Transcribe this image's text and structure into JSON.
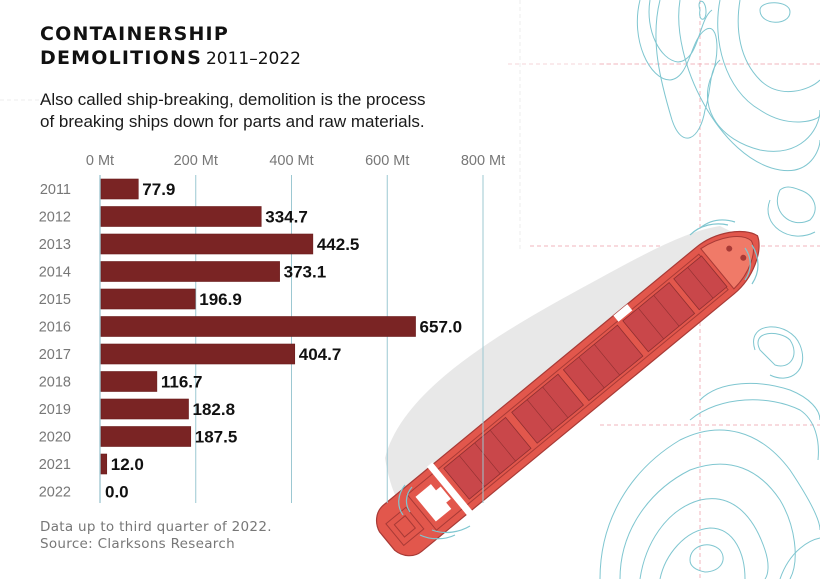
{
  "header": {
    "title_line1": "CONTAINERSHIP",
    "title_line2": "DEMOLITIONS",
    "title_range": "2011–2022",
    "subtitle_line1": "Also called ship-breaking, demolition is the process",
    "subtitle_line2": "of breaking ships down for parts and raw materials."
  },
  "footer": {
    "note": "Data up to third quarter of 2022.",
    "source": "Source: Clarksons Research"
  },
  "colors": {
    "bar": "#7a2424",
    "gridline": "#9cc8d2",
    "ship_hull": "#e2574c",
    "ship_deck": "#c9474a",
    "contour": "#7fc6d0",
    "guide_dash": "#f0b6bd"
  },
  "illustration": {
    "subject": "containership-top-view",
    "background": "topographic-contour-lines"
  },
  "chart_data": {
    "type": "bar",
    "orientation": "horizontal",
    "title": "CONTAINERSHIP DEMOLITIONS 2011–2022",
    "xlabel": "",
    "ylabel": "",
    "unit": "Mt",
    "xlim": [
      0,
      800
    ],
    "xticks": [
      0,
      200,
      400,
      600,
      800
    ],
    "xtick_labels": [
      "0 Mt",
      "200 Mt",
      "400 Mt",
      "600 Mt",
      "800 Mt"
    ],
    "grid": true,
    "categories": [
      "2011",
      "2012",
      "2013",
      "2014",
      "2015",
      "2016",
      "2017",
      "2018",
      "2019",
      "2020",
      "2021",
      "2022"
    ],
    "values": [
      77.9,
      334.7,
      442.5,
      373.1,
      196.9,
      657.0,
      404.7,
      116.7,
      182.8,
      187.5,
      12.0,
      0.0
    ],
    "value_labels": [
      "77.9",
      "334.7",
      "442.5",
      "373.1",
      "196.9",
      "657.0",
      "404.7",
      "116.7",
      "182.8",
      "187.5",
      "12.0",
      "0.0"
    ]
  }
}
